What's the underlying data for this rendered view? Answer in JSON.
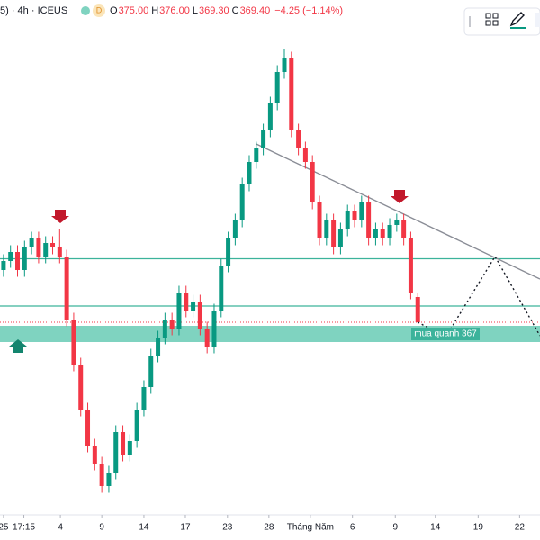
{
  "chart_data": {
    "type": "candlestick",
    "header": {
      "symbol": "5) · 4h · ICEUS",
      "badge": "D",
      "ohlc": [
        {
          "key": "O",
          "value": "375.00"
        },
        {
          "key": "H",
          "value": "376.00"
        },
        {
          "key": "L",
          "value": "369.30"
        },
        {
          "key": "C",
          "value": "369.40"
        }
      ],
      "change": "−4.25 (−1.14%)"
    },
    "open": [
      381,
      383,
      385,
      381,
      386,
      388,
      384,
      387,
      386,
      384,
      370,
      360,
      350,
      342,
      338,
      333,
      336,
      345,
      340,
      343,
      350,
      355,
      362,
      366,
      370,
      368,
      376,
      372,
      374,
      368,
      364,
      372,
      382,
      388,
      392,
      400,
      405,
      408,
      412,
      418,
      425,
      428,
      412,
      408,
      405,
      396,
      388,
      392,
      386,
      390,
      394,
      392,
      396,
      388,
      390,
      388,
      391,
      392,
      388,
      375
    ],
    "high": [
      384.5,
      386.5,
      386.5,
      387.5,
      389.5,
      389.5,
      388.5,
      388.5,
      390,
      385.5,
      371.5,
      361.5,
      351.5,
      343.5,
      339.5,
      337.5,
      346.5,
      346.5,
      344.5,
      351.5,
      356.5,
      363.5,
      367.5,
      371.5,
      371.5,
      377.5,
      377.5,
      375.5,
      375.5,
      369.5,
      373.5,
      383.5,
      389.5,
      393.5,
      401.5,
      406.5,
      409.5,
      413.5,
      419.5,
      426.5,
      430,
      429.5,
      413.5,
      409.5,
      406.5,
      397.5,
      393.5,
      393.5,
      391.5,
      395.5,
      395.5,
      397.5,
      397.5,
      391.5,
      391.5,
      392.5,
      393.5,
      393.5,
      389.5,
      376
    ],
    "low": [
      379.5,
      381.5,
      379.5,
      379.5,
      384.5,
      382.5,
      382.5,
      384.5,
      382.5,
      368.5,
      358.5,
      348.5,
      340.5,
      336.5,
      331.5,
      331.5,
      334.5,
      338.5,
      338.5,
      341.5,
      348.5,
      353.5,
      360.5,
      364.5,
      366.5,
      366.5,
      370.5,
      370.5,
      366.5,
      362.5,
      362.5,
      370.5,
      380.5,
      386.5,
      390.5,
      398.5,
      403.5,
      406.5,
      410.5,
      416.5,
      423.5,
      410.5,
      406.5,
      403.5,
      394.5,
      386.5,
      386.5,
      384.5,
      384.5,
      388.5,
      390.5,
      390.5,
      386.5,
      386.5,
      386.5,
      386.5,
      389.5,
      386.5,
      374.5,
      369.3
    ],
    "close": [
      383,
      385,
      381,
      386,
      388,
      384,
      387,
      386,
      384,
      370,
      360,
      350,
      342,
      338,
      333,
      336,
      345,
      340,
      343,
      350,
      355,
      362,
      366,
      370,
      368,
      376,
      372,
      374,
      368,
      364,
      372,
      382,
      388,
      392,
      400,
      405,
      408,
      412,
      418,
      425,
      428,
      412,
      408,
      405,
      396,
      388,
      392,
      386,
      390,
      394,
      392,
      396,
      388,
      390,
      388,
      391,
      392,
      388,
      376,
      369.4
    ],
    "up_color": "#089981",
    "down_color": "#f23645",
    "xlim": [
      -0.5,
      76.4
    ],
    "ylim": [
      324,
      441
    ],
    "xticks": [
      {
        "value": 0,
        "label": "25"
      },
      {
        "value": 2.9,
        "label": "17:15"
      },
      {
        "value": 8.1,
        "label": "4"
      },
      {
        "value": 14,
        "label": "9"
      },
      {
        "value": 20,
        "label": "14"
      },
      {
        "value": 25.9,
        "label": "17"
      },
      {
        "value": 31.9,
        "label": "23"
      },
      {
        "value": 37.8,
        "label": "28"
      },
      {
        "value": 43.7,
        "label": "Tháng Năm"
      },
      {
        "value": 49.7,
        "label": "6"
      },
      {
        "value": 55.8,
        "label": "9"
      },
      {
        "value": 61.5,
        "label": "14"
      },
      {
        "value": 67.6,
        "label": "19"
      },
      {
        "value": 73.5,
        "label": "22"
      }
    ],
    "levels": [
      383.5,
      373
    ],
    "level_color": "#3cb39b",
    "zone": [
      365,
      368.6
    ],
    "zone_color": "#7fd3c0",
    "zone_label": "mua quanh 367",
    "trendline": {
      "x": [
        36,
        76.4
      ],
      "y": [
        409,
        379
      ]
    },
    "projection": {
      "x": [
        59,
        63,
        70,
        76.4
      ],
      "y": [
        369.4,
        366.2,
        384,
        366.4
      ]
    }
  }
}
